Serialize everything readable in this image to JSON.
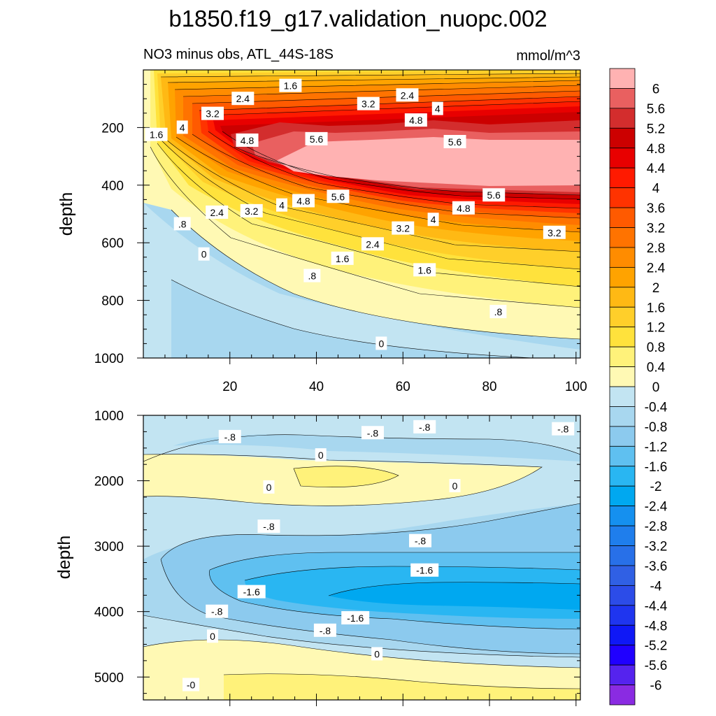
{
  "figure_title": "b1850.f19_g17.validation_nuopc.002",
  "subtitle_left": "NO3 minus obs, ATL_44S-18S",
  "subtitle_right": "mmol/m^3",
  "chart_data": [
    {
      "type": "heatmap",
      "panel": "upper",
      "ylabel": "depth",
      "xlabel": "",
      "xlim": [
        0,
        101
      ],
      "ylim": [
        1000,
        0
      ],
      "x_ticks": [
        "20",
        "40",
        "60",
        "80",
        "100"
      ],
      "y_ticks": [
        "200",
        "400",
        "600",
        "800",
        "1000"
      ],
      "contour_labels": [
        {
          "text": "2.4",
          "x": 23,
          "y": 100
        },
        {
          "text": "1.6",
          "x": 34,
          "y": 55
        },
        {
          "text": "2.4",
          "x": 61,
          "y": 88
        },
        {
          "text": "3.2",
          "x": 52,
          "y": 118
        },
        {
          "text": "3.2",
          "x": 16,
          "y": 152
        },
        {
          "text": "4",
          "x": 68,
          "y": 135
        },
        {
          "text": "4.8",
          "x": 63,
          "y": 175
        },
        {
          "text": "1.6",
          "x": 3,
          "y": 225
        },
        {
          "text": "4",
          "x": 9,
          "y": 200
        },
        {
          "text": "4.8",
          "x": 24,
          "y": 245
        },
        {
          "text": "5.6",
          "x": 40,
          "y": 240
        },
        {
          "text": "5.6",
          "x": 72,
          "y": 250
        },
        {
          "text": "5.6",
          "x": 45,
          "y": 440
        },
        {
          "text": "4.8",
          "x": 37,
          "y": 455
        },
        {
          "text": "4",
          "x": 32,
          "y": 470
        },
        {
          "text": "3.2",
          "x": 25,
          "y": 490
        },
        {
          "text": "2.4",
          "x": 17,
          "y": 495
        },
        {
          "text": ".8",
          "x": 9,
          "y": 535
        },
        {
          "text": "5.6",
          "x": 81,
          "y": 435
        },
        {
          "text": "4.8",
          "x": 74,
          "y": 480
        },
        {
          "text": "4",
          "x": 67,
          "y": 520
        },
        {
          "text": "3.2",
          "x": 60,
          "y": 550
        },
        {
          "text": "3.2",
          "x": 95,
          "y": 565
        },
        {
          "text": "2.4",
          "x": 53,
          "y": 605
        },
        {
          "text": "1.6",
          "x": 46,
          "y": 655
        },
        {
          "text": "1.6",
          "x": 65,
          "y": 695
        },
        {
          "text": "0",
          "x": 14,
          "y": 640
        },
        {
          "text": ".8",
          "x": 39,
          "y": 715
        },
        {
          "text": ".8",
          "x": 82,
          "y": 840
        },
        {
          "text": "0",
          "x": 55,
          "y": 950
        }
      ]
    },
    {
      "type": "heatmap",
      "panel": "lower",
      "ylabel": "depth",
      "xlabel": "",
      "xlim": [
        0,
        101
      ],
      "ylim": [
        5350,
        1000
      ],
      "x_ticks": [],
      "y_ticks": [
        "1000",
        "2000",
        "3000",
        "4000",
        "5000"
      ],
      "contour_labels": [
        {
          "text": "-.8",
          "x": 20,
          "y": 1330
        },
        {
          "text": "-.8",
          "x": 53,
          "y": 1270
        },
        {
          "text": "-.8",
          "x": 65,
          "y": 1180
        },
        {
          "text": "-.8",
          "x": 97,
          "y": 1210
        },
        {
          "text": "0",
          "x": 41,
          "y": 1610
        },
        {
          "text": "0",
          "x": 29,
          "y": 2100
        },
        {
          "text": "0",
          "x": 72,
          "y": 2080
        },
        {
          "text": "-.8",
          "x": 29,
          "y": 2700
        },
        {
          "text": "-.8",
          "x": 64,
          "y": 2920
        },
        {
          "text": "-1.6",
          "x": 65,
          "y": 3370
        },
        {
          "text": "-1.6",
          "x": 25,
          "y": 3700
        },
        {
          "text": "-.8",
          "x": 17,
          "y": 4000
        },
        {
          "text": "-1.6",
          "x": 49,
          "y": 4100
        },
        {
          "text": "0",
          "x": 16,
          "y": 4380
        },
        {
          "text": "-.8",
          "x": 42,
          "y": 4290
        },
        {
          "text": "0",
          "x": 54,
          "y": 4650
        },
        {
          "text": "-0",
          "x": 11,
          "y": 5120
        }
      ]
    }
  ],
  "colorbar": {
    "levels": [
      "6",
      "5.6",
      "5.2",
      "4.8",
      "4.4",
      "4",
      "3.6",
      "3.2",
      "2.8",
      "2.4",
      "2",
      "1.6",
      "1.2",
      "0.8",
      "0.4",
      "0",
      "-0.4",
      "-0.8",
      "-1.2",
      "-1.6",
      "-2",
      "-2.4",
      "-2.8",
      "-3.2",
      "-3.6",
      "-4",
      "-4.4",
      "-4.8",
      "-5.2",
      "-5.6",
      "-6"
    ],
    "colors": [
      "#ffb2b2",
      "#e96060",
      "#d32d2d",
      "#cc0000",
      "#e80000",
      "#ff1a00",
      "#ff3300",
      "#ff5a00",
      "#ff7300",
      "#ff8c00",
      "#ffa300",
      "#ffb914",
      "#ffcf2a",
      "#ffe23c",
      "#fff27a",
      "#fff9b4",
      "#c2e4f2",
      "#a8d7ef",
      "#8ccaee",
      "#5fc0f0",
      "#29b6f2",
      "#00a8f0",
      "#1590ef",
      "#1f7eec",
      "#2870e8",
      "#3060e4",
      "#2c4ce8",
      "#1f35ef",
      "#0f18f6",
      "#2000ff",
      "#5523ee",
      "#8a2be2"
    ]
  }
}
